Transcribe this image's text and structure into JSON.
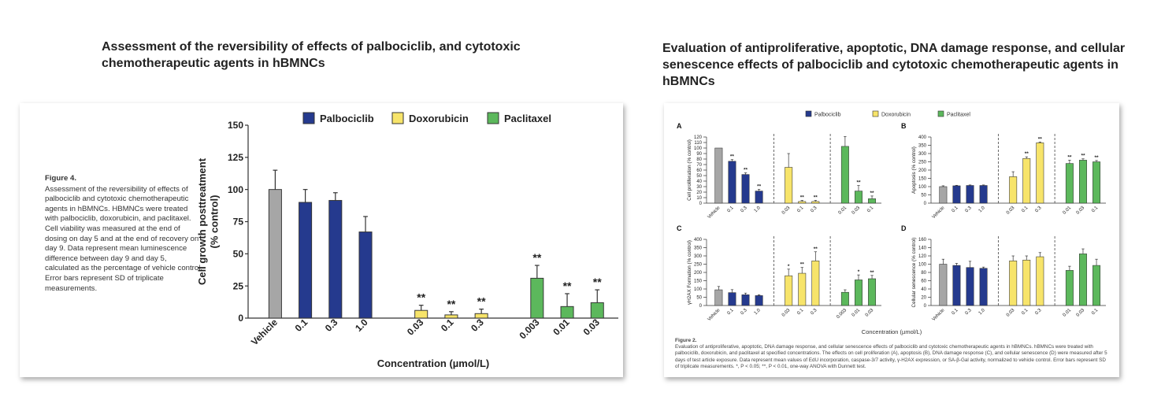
{
  "left": {
    "title": "Assessment of the reversibility of effects of palbociclib, and cytotoxic chemotherapeutic agents in hBMNCs",
    "caption_label": "Figure 4.",
    "caption_text": "Assessment of the reversibility of effects of palbociclib and cytotoxic chemotherapeutic agents in hBMNCs. HBMNCs were treated with palbociclib, doxorubicin, and paclitaxel. Cell viability was measured at the end of dosing on day 5 and at the end of recovery on day 9. Data represent mean luminescence difference between day 9 and day 5, calculated as the percentage of vehicle control. Error bars represent SD of triplicate measurements."
  },
  "right": {
    "title": "Evaluation of antiproliferative, apoptotic, DNA damage response, and cellular senescence effects of palbociclib and cytotoxic chemotherapeutic agents in hBMNCs",
    "caption_label": "Figure 2.",
    "caption_text": "Evaluation of antiproliferative, apoptotic, DNA damage response, and cellular senescence effects of palbociclib and cytotoxic chemotherapeutic agents in hBMNCs. hBMNCs were treated with palbociclib, doxorubicin, and paclitaxel at specified concentrations. The effects on cell proliferation (A), apoptosis (B), DNA damage response (C), and cellular senescence (D) were measured after 5 days of test article exposure. Data represent mean values of EdU incorporation, caspase-3/7 activity, γ-H2AX expression, or SA-β-Gal activity, normalized to vehicle control. Error bars represent SD of triplicate measurements. *, P < 0.05; **, P < 0.01, one-way ANOVA with Dunnett test.",
    "legend": [
      "Palbociclib",
      "Doxorubicin",
      "Paclitaxel"
    ],
    "xlabel": "Concentration (µmol/L)"
  },
  "colors": {
    "vehicle": "#a6a6a6",
    "palbociclib": "#253a8e",
    "doxorubicin": "#f7e46a",
    "paclitaxel": "#5cb85c"
  },
  "chart_data": [
    {
      "type": "bar",
      "ylabel": "Cell growth posttreatment\n(% control)",
      "xlabel": "Concentration (µmol/L)",
      "ylim": [
        0,
        150
      ],
      "yticks": [
        0,
        25,
        50,
        75,
        100,
        125,
        150
      ],
      "legend": [
        "Palbociclib",
        "Doxorubicin",
        "Paclitaxel"
      ],
      "bars": [
        {
          "label": "Vehicle",
          "group": "vehicle",
          "value": 100,
          "error": 15,
          "sig": ""
        },
        {
          "label": "0.1",
          "group": "palbociclib",
          "value": 90,
          "error": 10,
          "sig": ""
        },
        {
          "label": "0.3",
          "group": "palbociclib",
          "value": 91.5,
          "error": 6,
          "sig": ""
        },
        {
          "label": "1.0",
          "group": "palbociclib",
          "value": 67,
          "error": 12,
          "sig": ""
        },
        {
          "label": "0.03",
          "group": "doxorubicin",
          "value": 6,
          "error": 4,
          "sig": "**"
        },
        {
          "label": "0.1",
          "group": "doxorubicin",
          "value": 2.5,
          "error": 2.5,
          "sig": "**"
        },
        {
          "label": "0.3",
          "group": "doxorubicin",
          "value": 3.5,
          "error": 3.5,
          "sig": "**"
        },
        {
          "label": "0.003",
          "group": "paclitaxel",
          "value": 31,
          "error": 10,
          "sig": "**"
        },
        {
          "label": "0.01",
          "group": "paclitaxel",
          "value": 9,
          "error": 10,
          "sig": "**"
        },
        {
          "label": "0.03",
          "group": "paclitaxel",
          "value": 12,
          "error": 10,
          "sig": "**"
        }
      ]
    },
    {
      "type": "bar",
      "panel": "A",
      "ylabel": "Cell proliferation (% control)",
      "ylim": [
        0,
        120
      ],
      "yticks": [
        0,
        10,
        20,
        30,
        40,
        50,
        60,
        70,
        80,
        90,
        100,
        110,
        120
      ],
      "bars": [
        {
          "label": "Vehicle",
          "group": "vehicle",
          "value": 100,
          "error": 0,
          "sig": ""
        },
        {
          "label": "0.1",
          "group": "palbociclib",
          "value": 76,
          "error": 3,
          "sig": "**"
        },
        {
          "label": "0.3",
          "group": "palbociclib",
          "value": 52,
          "error": 3,
          "sig": "**"
        },
        {
          "label": "1.0",
          "group": "palbociclib",
          "value": 22,
          "error": 3,
          "sig": "**"
        },
        {
          "label": "0.03",
          "group": "doxorubicin",
          "value": 65,
          "error": 25,
          "sig": ""
        },
        {
          "label": "0.1",
          "group": "doxorubicin",
          "value": 3,
          "error": 2,
          "sig": "**"
        },
        {
          "label": "0.3",
          "group": "doxorubicin",
          "value": 3,
          "error": 2,
          "sig": "**"
        },
        {
          "label": "0.01",
          "group": "paclitaxel",
          "value": 103,
          "error": 18,
          "sig": ""
        },
        {
          "label": "0.03",
          "group": "paclitaxel",
          "value": 22,
          "error": 10,
          "sig": "**"
        },
        {
          "label": "0.1",
          "group": "paclitaxel",
          "value": 8,
          "error": 5,
          "sig": "**"
        }
      ]
    },
    {
      "type": "bar",
      "panel": "B",
      "ylabel": "Apoptosis (% control)",
      "ylim": [
        0,
        400
      ],
      "yticks": [
        0,
        50,
        100,
        150,
        200,
        250,
        300,
        350,
        400
      ],
      "bars": [
        {
          "label": "Vehicle",
          "group": "vehicle",
          "value": 100,
          "error": 5,
          "sig": ""
        },
        {
          "label": "0.1",
          "group": "palbociclib",
          "value": 105,
          "error": 3,
          "sig": ""
        },
        {
          "label": "0.3",
          "group": "palbociclib",
          "value": 107,
          "error": 3,
          "sig": ""
        },
        {
          "label": "1.0",
          "group": "palbociclib",
          "value": 107,
          "error": 3,
          "sig": ""
        },
        {
          "label": "0.03",
          "group": "doxorubicin",
          "value": 160,
          "error": 30,
          "sig": ""
        },
        {
          "label": "0.1",
          "group": "doxorubicin",
          "value": 270,
          "error": 10,
          "sig": "**"
        },
        {
          "label": "0.3",
          "group": "doxorubicin",
          "value": 365,
          "error": 5,
          "sig": "**"
        },
        {
          "label": "0.01",
          "group": "paclitaxel",
          "value": 240,
          "error": 20,
          "sig": "**"
        },
        {
          "label": "0.03",
          "group": "paclitaxel",
          "value": 260,
          "error": 8,
          "sig": "**"
        },
        {
          "label": "0.1",
          "group": "paclitaxel",
          "value": 250,
          "error": 8,
          "sig": "**"
        }
      ]
    },
    {
      "type": "bar",
      "panel": "C",
      "ylabel": "γH2AX Formation (% control)",
      "ylim": [
        0,
        400
      ],
      "yticks": [
        0,
        50,
        100,
        150,
        200,
        250,
        300,
        350,
        400
      ],
      "bars": [
        {
          "label": "Vehicle",
          "group": "vehicle",
          "value": 95,
          "error": 20,
          "sig": ""
        },
        {
          "label": "0.1",
          "group": "palbociclib",
          "value": 78,
          "error": 18,
          "sig": ""
        },
        {
          "label": "0.3",
          "group": "palbociclib",
          "value": 65,
          "error": 10,
          "sig": ""
        },
        {
          "label": "1.0",
          "group": "palbociclib",
          "value": 60,
          "error": 5,
          "sig": ""
        },
        {
          "label": "0.03",
          "group": "doxorubicin",
          "value": 180,
          "error": 40,
          "sig": "*"
        },
        {
          "label": "0.1",
          "group": "doxorubicin",
          "value": 195,
          "error": 35,
          "sig": "**"
        },
        {
          "label": "0.3",
          "group": "doxorubicin",
          "value": 270,
          "error": 55,
          "sig": "**"
        },
        {
          "label": "0.003",
          "group": "paclitaxel",
          "value": 80,
          "error": 15,
          "sig": ""
        },
        {
          "label": "0.01",
          "group": "paclitaxel",
          "value": 155,
          "error": 30,
          "sig": "*"
        },
        {
          "label": "0.03",
          "group": "paclitaxel",
          "value": 162,
          "error": 20,
          "sig": "**"
        }
      ]
    },
    {
      "type": "bar",
      "panel": "D",
      "ylabel": "Cellular senescence (% control)",
      "ylim": [
        0,
        160
      ],
      "yticks": [
        0,
        20,
        40,
        60,
        80,
        100,
        120,
        140,
        160
      ],
      "bars": [
        {
          "label": "Vehicle",
          "group": "vehicle",
          "value": 100,
          "error": 12,
          "sig": ""
        },
        {
          "label": "0.1",
          "group": "palbociclib",
          "value": 97,
          "error": 5,
          "sig": ""
        },
        {
          "label": "0.3",
          "group": "palbociclib",
          "value": 92,
          "error": 15,
          "sig": ""
        },
        {
          "label": "1.0",
          "group": "palbociclib",
          "value": 90,
          "error": 3,
          "sig": ""
        },
        {
          "label": "0.03",
          "group": "doxorubicin",
          "value": 108,
          "error": 12,
          "sig": ""
        },
        {
          "label": "0.1",
          "group": "doxorubicin",
          "value": 110,
          "error": 10,
          "sig": ""
        },
        {
          "label": "0.3",
          "group": "doxorubicin",
          "value": 118,
          "error": 10,
          "sig": ""
        },
        {
          "label": "0.01",
          "group": "paclitaxel",
          "value": 85,
          "error": 10,
          "sig": ""
        },
        {
          "label": "0.03",
          "group": "paclitaxel",
          "value": 125,
          "error": 12,
          "sig": ""
        },
        {
          "label": "0.1",
          "group": "paclitaxel",
          "value": 97,
          "error": 15,
          "sig": ""
        }
      ]
    }
  ]
}
